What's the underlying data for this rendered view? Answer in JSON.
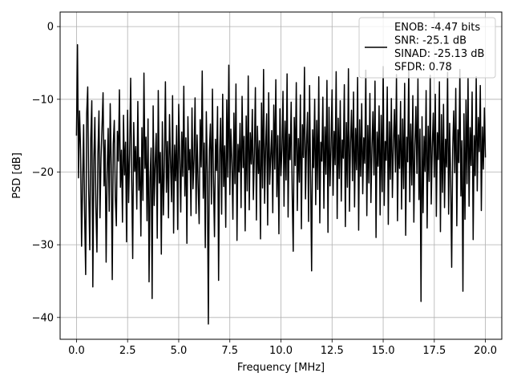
{
  "chart_data": {
    "type": "line",
    "title": "",
    "xlabel": "Frequency [MHz]",
    "ylabel": "PSD [dB]",
    "xlim": [
      -0.8,
      20.8
    ],
    "ylim": [
      -43,
      2
    ],
    "x_ticks": [
      0.0,
      2.5,
      5.0,
      7.5,
      10.0,
      12.5,
      15.0,
      17.5,
      20.0
    ],
    "x_tick_labels": [
      "0.0",
      "2.5",
      "5.0",
      "7.5",
      "10.0",
      "12.5",
      "15.0",
      "17.5",
      "20.0"
    ],
    "y_ticks": [
      0,
      -10,
      -20,
      -30,
      -40
    ],
    "y_tick_labels": [
      "0",
      "−10",
      "−20",
      "−30",
      "−40"
    ],
    "grid": true,
    "legend_position": "top-right",
    "series": [
      {
        "name": "ENOB: -4.47 bits\nSNR: -25.1 dB\nSINAD: -25.13 dB\nSFDR: 0.78",
        "color": "#000000",
        "x": [
          0.0,
          0.05,
          0.1,
          0.15,
          0.2,
          0.25,
          0.3,
          0.35,
          0.4,
          0.45,
          0.5,
          0.55,
          0.6,
          0.65,
          0.7,
          0.75,
          0.8,
          0.85,
          0.9,
          0.95,
          1.0,
          1.05,
          1.1,
          1.15,
          1.2,
          1.25,
          1.3,
          1.35,
          1.4,
          1.45,
          1.5,
          1.55,
          1.6,
          1.65,
          1.7,
          1.75,
          1.8,
          1.85,
          1.9,
          1.95,
          2.0,
          2.05,
          2.1,
          2.15,
          2.2,
          2.25,
          2.3,
          2.35,
          2.4,
          2.45,
          2.5,
          2.55,
          2.6,
          2.65,
          2.7,
          2.75,
          2.8,
          2.85,
          2.9,
          2.95,
          3.0,
          3.05,
          3.1,
          3.15,
          3.2,
          3.25,
          3.3,
          3.35,
          3.4,
          3.45,
          3.5,
          3.55,
          3.6,
          3.65,
          3.7,
          3.75,
          3.8,
          3.85,
          3.9,
          3.95,
          4.0,
          4.05,
          4.1,
          4.15,
          4.2,
          4.25,
          4.3,
          4.35,
          4.4,
          4.45,
          4.5,
          4.55,
          4.6,
          4.65,
          4.7,
          4.75,
          4.8,
          4.85,
          4.9,
          4.95,
          5.0,
          5.05,
          5.1,
          5.15,
          5.2,
          5.25,
          5.3,
          5.35,
          5.4,
          5.45,
          5.5,
          5.55,
          5.6,
          5.65,
          5.7,
          5.75,
          5.8,
          5.85,
          5.9,
          5.95,
          6.0,
          6.05,
          6.1,
          6.15,
          6.2,
          6.25,
          6.3,
          6.35,
          6.4,
          6.45,
          6.5,
          6.55,
          6.6,
          6.65,
          6.7,
          6.75,
          6.8,
          6.85,
          6.9,
          6.95,
          7.0,
          7.05,
          7.1,
          7.15,
          7.2,
          7.25,
          7.3,
          7.35,
          7.4,
          7.45,
          7.5,
          7.55,
          7.6,
          7.65,
          7.7,
          7.75,
          7.8,
          7.85,
          7.9,
          7.95,
          8.0,
          8.05,
          8.1,
          8.15,
          8.2,
          8.25,
          8.3,
          8.35,
          8.4,
          8.45,
          8.5,
          8.55,
          8.6,
          8.65,
          8.7,
          8.75,
          8.8,
          8.85,
          8.9,
          8.95,
          9.0,
          9.05,
          9.1,
          9.15,
          9.2,
          9.25,
          9.3,
          9.35,
          9.4,
          9.45,
          9.5,
          9.55,
          9.6,
          9.65,
          9.7,
          9.75,
          9.8,
          9.85,
          9.9,
          9.95,
          10.0,
          10.05,
          10.1,
          10.15,
          10.2,
          10.25,
          10.3,
          10.35,
          10.4,
          10.45,
          10.5,
          10.55,
          10.6,
          10.65,
          10.7,
          10.75,
          10.8,
          10.85,
          10.9,
          10.95,
          11.0,
          11.05,
          11.1,
          11.15,
          11.2,
          11.25,
          11.3,
          11.35,
          11.4,
          11.45,
          11.5,
          11.55,
          11.6,
          11.65,
          11.7,
          11.75,
          11.8,
          11.85,
          11.9,
          11.95,
          12.0,
          12.05,
          12.1,
          12.15,
          12.2,
          12.25,
          12.3,
          12.35,
          12.4,
          12.45,
          12.5,
          12.55,
          12.6,
          12.65,
          12.7,
          12.75,
          12.8,
          12.85,
          12.9,
          12.95,
          13.0,
          13.05,
          13.1,
          13.15,
          13.2,
          13.25,
          13.3,
          13.35,
          13.4,
          13.45,
          13.5,
          13.55,
          13.6,
          13.65,
          13.7,
          13.75,
          13.8,
          13.85,
          13.9,
          13.95,
          14.0,
          14.05,
          14.1,
          14.15,
          14.2,
          14.25,
          14.3,
          14.35,
          14.4,
          14.45,
          14.5,
          14.55,
          14.6,
          14.65,
          14.7,
          14.75,
          14.8,
          14.85,
          14.9,
          14.95,
          15.0,
          15.05,
          15.1,
          15.15,
          15.2,
          15.25,
          15.3,
          15.35,
          15.4,
          15.45,
          15.5,
          15.55,
          15.6,
          15.65,
          15.7,
          15.75,
          15.8,
          15.85,
          15.9,
          15.95,
          16.0,
          16.05,
          16.1,
          16.15,
          16.2,
          16.25,
          16.3,
          16.35,
          16.4,
          16.45,
          16.5,
          16.55,
          16.6,
          16.65,
          16.7,
          16.75,
          16.8,
          16.85,
          16.9,
          16.95,
          17.0,
          17.05,
          17.1,
          17.15,
          17.2,
          17.25,
          17.3,
          17.35,
          17.4,
          17.45,
          17.5,
          17.55,
          17.6,
          17.65,
          17.7,
          17.75,
          17.8,
          17.85,
          17.9,
          17.95,
          18.0,
          18.05,
          18.1,
          18.15,
          18.2,
          18.25,
          18.3,
          18.35,
          18.4,
          18.45,
          18.5,
          18.55,
          18.6,
          18.65,
          18.7,
          18.75,
          18.8,
          18.85,
          18.9,
          18.95,
          19.0,
          19.05,
          19.1,
          19.15,
          19.2,
          19.25,
          19.3,
          19.35,
          19.4,
          19.45,
          19.5,
          19.55,
          19.6,
          19.65,
          19.7,
          19.75,
          19.8,
          19.85,
          19.9,
          19.95,
          20.0
        ],
        "y": [
          -15.0,
          -2.5,
          -20.8,
          -11.6,
          -16.9,
          -30.2,
          -21.6,
          -13.5,
          -26.1,
          -34.1,
          -12.0,
          -8.3,
          -22.7,
          -30.7,
          -15.4,
          -10.2,
          -35.8,
          -18.4,
          -12.5,
          -24.8,
          -31.0,
          -17.5,
          -11.6,
          -26.3,
          -18.1,
          -13.8,
          -9.1,
          -21.9,
          -15.6,
          -32.4,
          -20.3,
          -14.0,
          -25.4,
          -10.6,
          -19.2,
          -34.8,
          -16.1,
          -12.9,
          -23.5,
          -27.4,
          -14.4,
          -18.5,
          -8.7,
          -22.1,
          -17.0,
          -26.9,
          -12.2,
          -20.4,
          -15.9,
          -29.6,
          -11.5,
          -24.2,
          -17.6,
          -7.1,
          -21.0,
          -31.9,
          -13.2,
          -19.9,
          -16.5,
          -25.1,
          -10.3,
          -22.5,
          -18.0,
          -28.8,
          -13.9,
          -23.9,
          -6.4,
          -19.5,
          -15.2,
          -26.7,
          -12.7,
          -35.1,
          -20.9,
          -16.7,
          -37.4,
          -10.9,
          -24.6,
          -18.8,
          -14.7,
          -29.1,
          -8.8,
          -21.5,
          -17.3,
          -31.3,
          -13.1,
          -25.9,
          -19.0,
          -7.6,
          -22.8,
          -15.8,
          -26.3,
          -12.1,
          -18.6,
          -24.1,
          -9.5,
          -28.4,
          -16.3,
          -21.2,
          -13.6,
          -27.9,
          -10.7,
          -17.9,
          -25.5,
          -14.5,
          -20.6,
          -8.2,
          -23.3,
          -15.3,
          -29.8,
          -12.4,
          -19.7,
          -16.9,
          -26.0,
          -11.2,
          -22.3,
          -18.2,
          -9.8,
          -25.7,
          -14.9,
          -21.8,
          -27.1,
          -12.8,
          -19.3,
          -6.1,
          -23.6,
          -16.0,
          -30.4,
          -11.7,
          -20.1,
          -40.9,
          -17.1,
          -13.4,
          -24.4,
          -8.6,
          -21.3,
          -28.9,
          -15.5,
          -19.8,
          -11.0,
          -34.9,
          -17.7,
          -12.6,
          -25.8,
          -9.3,
          -22.0,
          -16.4,
          -27.6,
          -10.1,
          -20.7,
          -5.3,
          -23.1,
          -14.1,
          -18.7,
          -26.5,
          -11.9,
          -21.6,
          -7.9,
          -29.4,
          -16.2,
          -20.0,
          -13.3,
          -24.9,
          -9.6,
          -19.4,
          -15.1,
          -28.1,
          -12.3,
          -22.6,
          -6.8,
          -25.2,
          -14.6,
          -18.9,
          -11.4,
          -23.8,
          -17.4,
          -8.4,
          -26.6,
          -13.7,
          -20.2,
          -15.7,
          -29.2,
          -10.5,
          -22.2,
          -5.9,
          -24.3,
          -16.6,
          -12.0,
          -27.3,
          -9.1,
          -21.7,
          -17.8,
          -14.3,
          -25.6,
          -10.8,
          -19.6,
          -7.3,
          -23.4,
          -15.0,
          -28.5,
          -11.3,
          -20.5,
          -16.8,
          -8.9,
          -24.7,
          -13.0,
          -21.1,
          -6.5,
          -26.2,
          -14.8,
          -18.3,
          -10.4,
          -22.9,
          -30.9,
          -12.5,
          -19.1,
          -7.7,
          -25.3,
          -15.4,
          -21.4,
          -9.4,
          -27.8,
          -13.5,
          -18.0,
          -5.6,
          -23.7,
          -16.3,
          -11.8,
          -26.8,
          -8.1,
          -20.8,
          -33.6,
          -14.2,
          -19.4,
          -10.0,
          -24.5,
          -12.9,
          -22.4,
          -6.9,
          -27.0,
          -15.9,
          -18.5,
          -9.7,
          -25.0,
          -13.8,
          -20.3,
          -7.4,
          -28.3,
          -11.1,
          -21.9,
          -16.5,
          -8.7,
          -23.2,
          -14.4,
          -19.0,
          -6.2,
          -26.4,
          -12.6,
          -20.9,
          -10.2,
          -24.0,
          -15.6,
          -18.1,
          -8.0,
          -27.5,
          -13.2,
          -22.1,
          -5.8,
          -25.4,
          -16.0,
          -11.5,
          -21.2,
          -9.0,
          -24.8,
          -14.0,
          -19.7,
          -7.0,
          -28.0,
          -12.8,
          -20.6,
          -10.6,
          -23.0,
          -15.3,
          -18.8,
          -6.0,
          -26.0,
          -13.6,
          -21.5,
          -9.2,
          -24.2,
          -16.7,
          -11.7,
          -20.4,
          -7.5,
          -29.0,
          -14.5,
          -19.2,
          -10.9,
          -25.9,
          -12.2,
          -22.7,
          -5.5,
          -24.6,
          -15.8,
          -18.4,
          -8.3,
          -27.2,
          -13.1,
          -21.0,
          -9.9,
          -23.5,
          -16.1,
          -11.4,
          -20.0,
          -6.6,
          -26.7,
          -14.9,
          -19.5,
          -10.3,
          -25.1,
          -12.7,
          -22.3,
          -7.8,
          -28.7,
          -15.2,
          -18.6,
          -5.7,
          -24.1,
          -13.4,
          -21.8,
          -9.5,
          -26.9,
          -16.4,
          -11.0,
          -20.2,
          -7.2,
          -23.8,
          -14.1,
          -37.8,
          -12.4,
          -25.6,
          -15.1,
          -19.9,
          -8.8,
          -27.7,
          -13.7,
          -21.3,
          -6.7,
          -24.4,
          -16.6,
          -11.9,
          -20.7,
          -9.3,
          -26.1,
          -14.6,
          -18.3,
          -7.6,
          -28.2,
          -12.1,
          -22.8,
          -10.7,
          -24.9,
          -15.5,
          -19.3,
          -6.3,
          -25.8,
          -13.3,
          -21.1,
          -33.1,
          -16.8,
          -11.6,
          -20.1,
          -8.5,
          -27.4,
          -14.2,
          -18.7,
          -5.9,
          -23.3,
          -15.7,
          -36.4,
          -12.0,
          -26.5,
          -10.1,
          -21.6,
          -7.1,
          -24.7,
          -13.9,
          -19.1,
          -9.0,
          -29.3,
          -15.0,
          -20.5,
          -6.9,
          -22.6,
          -12.5,
          -17.2,
          -8.1,
          -25.3,
          -13.8,
          -19.6,
          -11.2,
          -18.0
        ]
      }
    ]
  }
}
